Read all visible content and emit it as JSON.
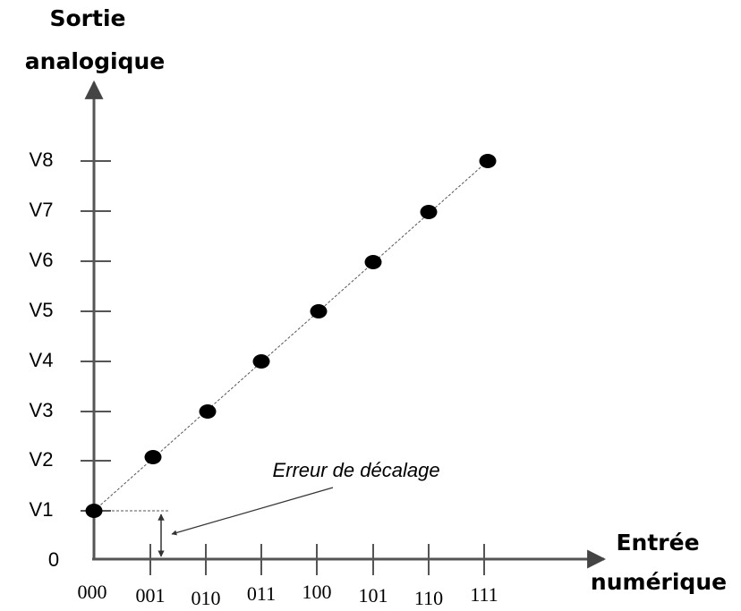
{
  "y_axis": {
    "title_lines": [
      "Sortie",
      "analogique"
    ],
    "labels": [
      "0",
      "V1",
      "V2",
      "V3",
      "V4",
      "V5",
      "V6",
      "V7",
      "V8"
    ]
  },
  "x_axis": {
    "title_lines": [
      "Entrée",
      "numérique"
    ],
    "labels": [
      "000",
      "001",
      "010",
      "011",
      "100",
      "101",
      "110",
      "111"
    ]
  },
  "annotation": "Erreur de décalage"
}
